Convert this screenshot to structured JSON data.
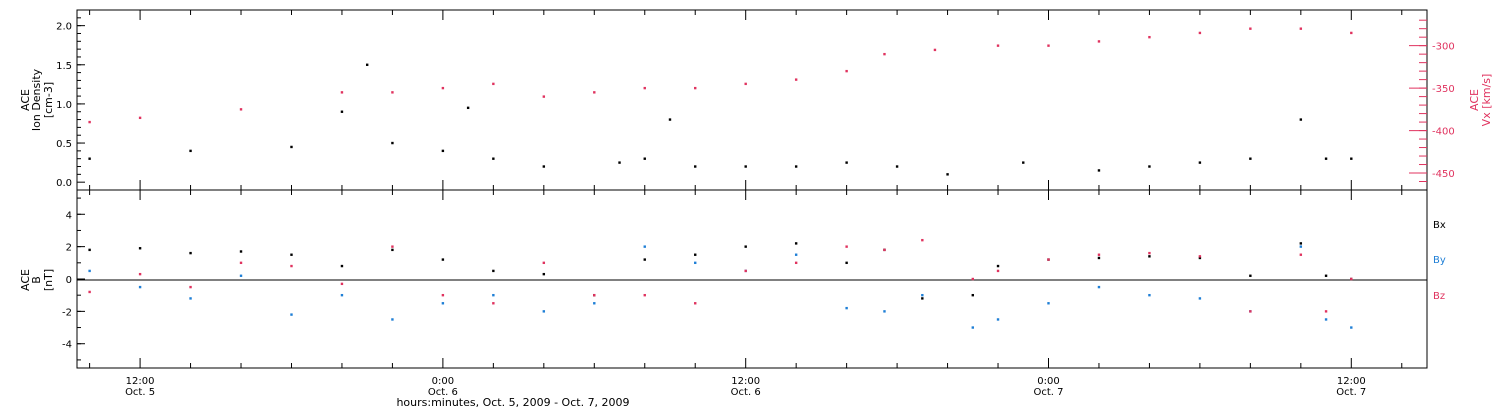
{
  "colors": {
    "black": "#000000",
    "pink": "#e0335f",
    "blue": "#1f7fd6"
  },
  "x_axis": {
    "label": "hours:minutes, Oct. 5, 2009 - Oct. 7, 2009",
    "tick_time_labels": [
      "12:00",
      "0:00",
      "12:00",
      "0:00",
      "12:00"
    ],
    "tick_date_labels": [
      "Oct. 5",
      "Oct. 6",
      "Oct. 6",
      "Oct. 7",
      "Oct. 7"
    ],
    "tick_hours": [
      0,
      12,
      24,
      36,
      48
    ],
    "range_hours": [
      -2.5,
      51
    ]
  },
  "chart_data": [
    {
      "type": "scatter",
      "panel": "top",
      "ylabel": [
        "ACE",
        "Ion Density",
        "[cm-3]"
      ],
      "left_axis": {
        "ylim": [
          -0.1,
          2.2
        ],
        "ticks": [
          0.0,
          0.5,
          1.0,
          1.5,
          2.0
        ],
        "tick_labels": [
          "0.0",
          "0.5",
          "1.0",
          "1.5",
          "2.0"
        ]
      },
      "right_axis": {
        "label": [
          "ACE",
          "Vx [km/s]"
        ],
        "ylim": [
          -470,
          -258
        ],
        "ticks": [
          -450,
          -400,
          -350,
          -300
        ],
        "tick_labels": [
          "-450",
          "-400",
          "-350",
          "-300"
        ]
      },
      "series": [
        {
          "axis": "left",
          "color": "black",
          "x": [
            -2.0,
            2.0,
            6.0,
            8.0,
            9.0,
            10.0,
            12.0,
            13.0,
            14.0,
            16.0,
            19.0,
            20.0,
            21.0,
            22.0,
            24.0,
            26.0,
            28.0,
            30.0,
            32.0,
            35.0,
            38.0,
            40.0,
            42.0,
            44.0,
            46.0,
            47.0,
            48.0
          ],
          "y": [
            0.3,
            0.4,
            0.45,
            0.9,
            1.5,
            0.5,
            0.4,
            0.95,
            0.3,
            0.2,
            0.25,
            0.3,
            0.8,
            0.2,
            0.2,
            0.2,
            0.25,
            0.2,
            0.1,
            0.25,
            0.15,
            0.2,
            0.25,
            0.3,
            0.8,
            0.3,
            0.3
          ]
        },
        {
          "axis": "right",
          "color": "pink",
          "x": [
            -2.0,
            0.0,
            4.0,
            8.0,
            10.0,
            12.0,
            14.0,
            16.0,
            18.0,
            20.0,
            22.0,
            24.0,
            26.0,
            28.0,
            29.5,
            31.5,
            34.0,
            36.0,
            38.0,
            40.0,
            42.0,
            44.0,
            46.0,
            48.0
          ],
          "y": [
            -390,
            -385,
            -375,
            -355,
            -355,
            -350,
            -345,
            -360,
            -355,
            -350,
            -350,
            -345,
            -340,
            -330,
            -310,
            -305,
            -300,
            -300,
            -295,
            -290,
            -285,
            -280,
            -280,
            -285
          ]
        }
      ]
    },
    {
      "type": "scatter",
      "panel": "bottom",
      "ylabel": [
        "ACE",
        "B",
        "[nT]"
      ],
      "ylim": [
        -5.5,
        5.5
      ],
      "ticks": [
        -4,
        -2,
        0,
        2,
        4
      ],
      "tick_labels": [
        "-4",
        "-2",
        "0",
        "2",
        "4"
      ],
      "legend": [
        "Bx",
        "By",
        "Bz"
      ],
      "series": [
        {
          "name": "Bx",
          "color": "black",
          "x": [
            -2.0,
            0.0,
            2.0,
            4.0,
            6.0,
            8.0,
            10.0,
            12.0,
            14.0,
            16.0,
            18.0,
            20.0,
            22.0,
            24.0,
            26.0,
            28.0,
            29.5,
            31.0,
            33.0,
            34.0,
            36.0,
            38.0,
            40.0,
            42.0,
            44.0,
            46.0,
            47.0,
            48.0
          ],
          "y": [
            1.8,
            1.9,
            1.6,
            1.7,
            1.5,
            0.8,
            1.8,
            1.2,
            0.5,
            0.3,
            -1.0,
            1.2,
            1.5,
            2.0,
            2.2,
            1.0,
            1.8,
            -1.2,
            -1.0,
            0.8,
            1.2,
            1.3,
            1.4,
            1.3,
            0.2,
            2.2,
            0.2,
            0.0
          ]
        },
        {
          "name": "By",
          "color": "blue",
          "x": [
            -2.0,
            0.0,
            2.0,
            4.0,
            6.0,
            8.0,
            10.0,
            12.0,
            14.0,
            16.0,
            18.0,
            20.0,
            22.0,
            24.0,
            26.0,
            28.0,
            29.5,
            31.0,
            33.0,
            34.0,
            36.0,
            38.0,
            40.0,
            42.0,
            44.0,
            46.0,
            47.0,
            48.0
          ],
          "y": [
            0.5,
            -0.5,
            -1.2,
            0.2,
            -2.2,
            -1.0,
            -2.5,
            -1.5,
            -1.0,
            -2.0,
            -1.5,
            2.0,
            1.0,
            0.5,
            1.5,
            -1.8,
            -2.0,
            -1.0,
            -3.0,
            -2.5,
            -1.5,
            -0.5,
            -1.0,
            -1.2,
            -2.0,
            2.0,
            -2.5,
            -3.0
          ]
        },
        {
          "name": "Bz",
          "color": "pink",
          "x": [
            -2.0,
            0.0,
            2.0,
            4.0,
            6.0,
            8.0,
            10.0,
            12.0,
            14.0,
            16.0,
            18.0,
            20.0,
            22.0,
            24.0,
            26.0,
            28.0,
            29.5,
            31.0,
            33.0,
            34.0,
            36.0,
            38.0,
            40.0,
            42.0,
            44.0,
            46.0,
            47.0,
            48.0
          ],
          "y": [
            -0.8,
            0.3,
            -0.5,
            1.0,
            0.8,
            -0.3,
            2.0,
            -1.0,
            -1.5,
            1.0,
            -1.0,
            -1.0,
            -1.5,
            0.5,
            1.0,
            2.0,
            1.8,
            2.4,
            0.0,
            0.5,
            1.2,
            1.5,
            1.6,
            1.4,
            -2.0,
            1.5,
            -2.0,
            0.0
          ]
        }
      ]
    }
  ]
}
